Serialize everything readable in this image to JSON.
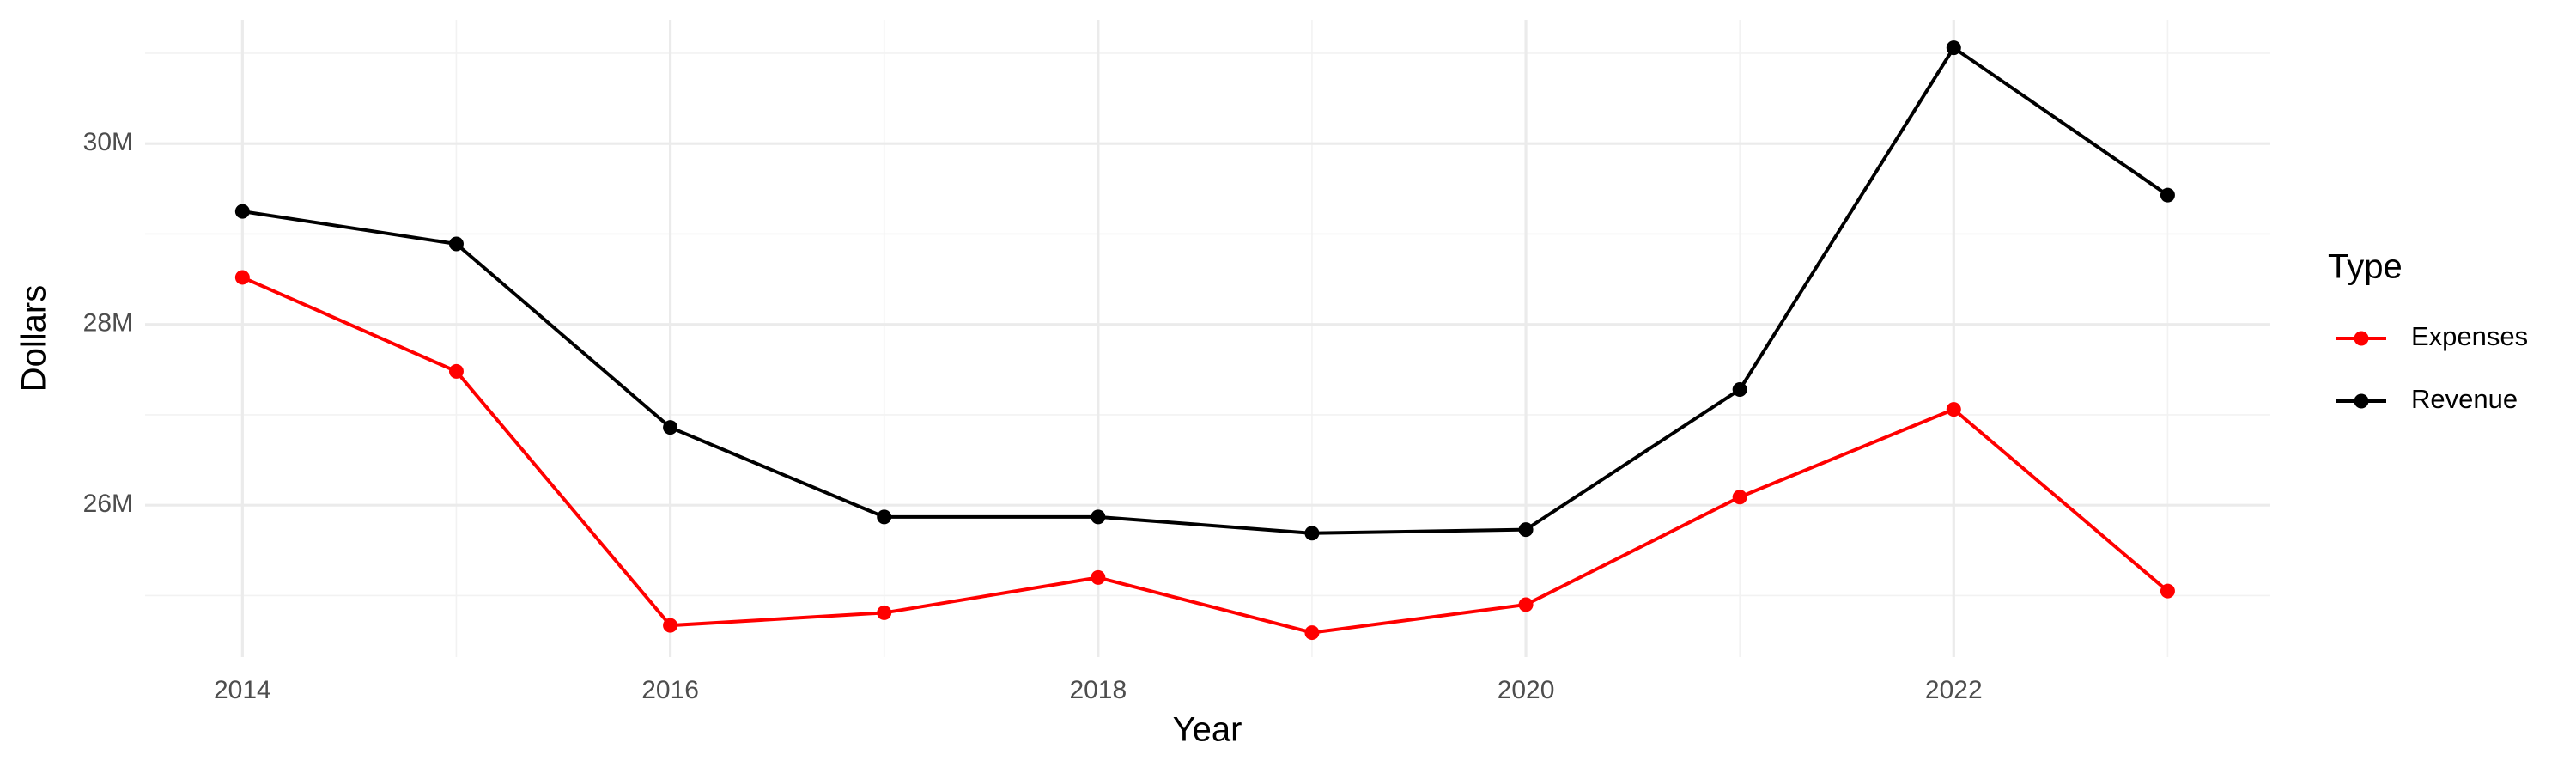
{
  "chart_data": {
    "type": "line",
    "x_label": "Year",
    "y_label": "Dollars",
    "legend_title": "Type",
    "x": [
      2014,
      2015,
      2016,
      2017,
      2018,
      2019,
      2020,
      2021,
      2022,
      2023
    ],
    "series": [
      {
        "name": "Expenses",
        "color": "#ff0000",
        "values": [
          28520000,
          27480000,
          24670000,
          24810000,
          25200000,
          24590000,
          24900000,
          26090000,
          27060000,
          25050000
        ]
      },
      {
        "name": "Revenue",
        "color": "#000000",
        "values": [
          29250000,
          28890000,
          26860000,
          25870000,
          25870000,
          25690000,
          25730000,
          27280000,
          31060000,
          29430000
        ]
      }
    ],
    "xlim": [
      2013.545,
      2023.48
    ],
    "xticks": [
      2014,
      2016,
      2018,
      2020,
      2022
    ],
    "x_minor_ticks": [
      2015,
      2017,
      2019,
      2021,
      2023
    ],
    "ylim": [
      24320000,
      31370000
    ],
    "yticks": [
      {
        "value": 26000000,
        "label": "26M"
      },
      {
        "value": 28000000,
        "label": "28M"
      },
      {
        "value": 30000000,
        "label": "30M"
      }
    ],
    "y_minor_ticks": [
      25000000,
      27000000,
      29000000,
      31000000
    ],
    "grid": true,
    "legend": "right"
  }
}
